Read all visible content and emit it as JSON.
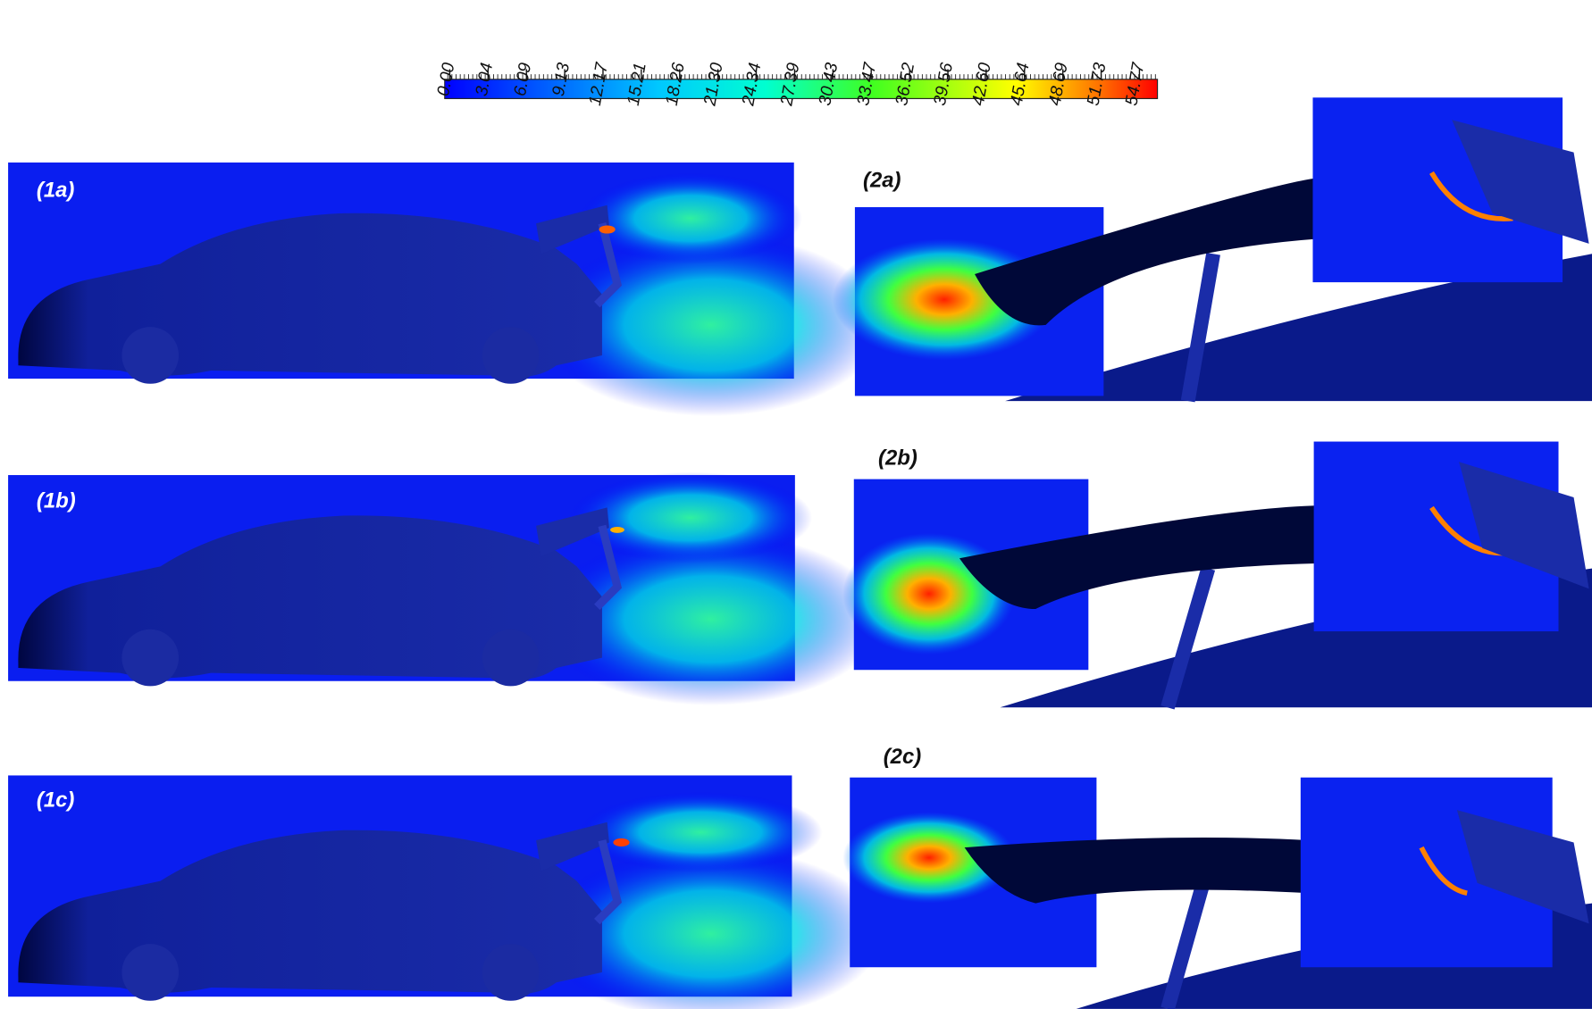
{
  "colorbar": {
    "lim": [
      -0.4,
      56.2
    ],
    "ticks": [
      {
        "value": 0,
        "label": "0.00"
      },
      {
        "value": 3.04,
        "label": "3.04"
      },
      {
        "value": 6.09,
        "label": "6.09"
      },
      {
        "value": 9.13,
        "label": "9.13"
      },
      {
        "value": 12.17,
        "label": "12.17"
      },
      {
        "value": 15.21,
        "label": "15.21"
      },
      {
        "value": 18.26,
        "label": "18.26"
      },
      {
        "value": 21.3,
        "label": "21.30"
      },
      {
        "value": 24.34,
        "label": "24.34"
      },
      {
        "value": 27.39,
        "label": "27.39"
      },
      {
        "value": 30.43,
        "label": "30.43"
      },
      {
        "value": 33.47,
        "label": "33.47"
      },
      {
        "value": 36.52,
        "label": "36.52"
      },
      {
        "value": 39.56,
        "label": "39.56"
      },
      {
        "value": 42.6,
        "label": "42.60"
      },
      {
        "value": 45.64,
        "label": "45.64"
      },
      {
        "value": 48.69,
        "label": "48.69"
      },
      {
        "value": 51.73,
        "label": "51.73"
      },
      {
        "value": 54.77,
        "label": "54.77"
      }
    ]
  },
  "panels": [
    {
      "label": "(1a)"
    },
    {
      "label": "(1b)"
    },
    {
      "label": "(1c)"
    },
    {
      "label": "(2a)"
    },
    {
      "label": "(2b)"
    },
    {
      "label": "(2c)"
    }
  ]
}
